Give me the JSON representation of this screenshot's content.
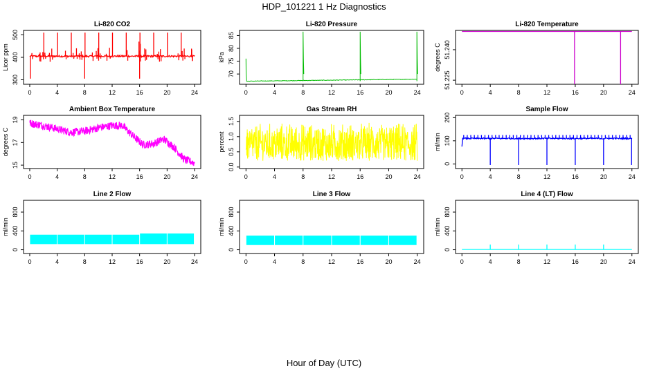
{
  "figure": {
    "title": "HDP_101221  1 Hz Diagnostics",
    "xlabel": "Hour of Day (UTC)"
  },
  "chart_data": [
    {
      "type": "line",
      "title": "Li-820 CO2",
      "ylabel": "Licor ppm",
      "color": "#ff0000",
      "xlim": [
        0,
        24
      ],
      "xticks": [
        "0",
        "4",
        "8",
        "12",
        "16",
        "20",
        "24"
      ],
      "ylim": [
        280,
        520
      ],
      "yticks": [
        "300",
        "400",
        "500"
      ],
      "ytick_values": [
        300,
        400,
        500
      ],
      "series": [
        {
          "name": "CO2",
          "baseline": 405,
          "noise": 4,
          "spikes_at": [
            0,
            2,
            4,
            6,
            8,
            10,
            12,
            14,
            16,
            18,
            20,
            22,
            24
          ],
          "spike_peak": 510,
          "dips_at": [
            0.1,
            8,
            16
          ],
          "dip_low": 305
        }
      ]
    },
    {
      "type": "line",
      "title": "Li-820 Pressure",
      "ylabel": "kPa",
      "color": "#00bb00",
      "xlim": [
        0,
        24
      ],
      "xticks": [
        "0",
        "4",
        "8",
        "12",
        "16",
        "20",
        "24"
      ],
      "ylim": [
        66,
        87
      ],
      "yticks": [
        "70",
        "75",
        "80",
        "85"
      ],
      "ytick_values": [
        70,
        75,
        80,
        85
      ],
      "series": [
        {
          "name": "Pressure",
          "start": 76,
          "baseline_start": 67.2,
          "baseline_end": 68,
          "spikes_at": [
            8,
            16,
            24
          ],
          "spike_peak": 86.5
        }
      ]
    },
    {
      "type": "line",
      "title": "Li-820 Temperature",
      "ylabel": "degrees C",
      "color": "#cc00cc",
      "xlim": [
        0,
        24
      ],
      "xticks": [
        "0",
        "4",
        "8",
        "12",
        "16",
        "20",
        "24"
      ],
      "ylim": [
        51.223,
        51.2495
      ],
      "yticks": [
        "51.225",
        "51.240"
      ],
      "ytick_values": [
        51.225,
        51.24
      ],
      "series": [
        {
          "name": "Temperature",
          "baseline": 51.249,
          "dips_at": [
            15.9,
            22.4
          ],
          "dip_low": 51.223
        }
      ]
    },
    {
      "type": "line",
      "title": "Ambient Box Temperature",
      "ylabel": "degrees C",
      "color": "#ff00ff",
      "xlim": [
        0,
        24
      ],
      "xticks": [
        "0",
        "4",
        "8",
        "12",
        "16",
        "20",
        "24"
      ],
      "ylim": [
        14.7,
        19.4
      ],
      "yticks": [
        "15",
        "17",
        "19"
      ],
      "ytick_values": [
        15,
        17,
        19
      ],
      "series": [
        {
          "name": "Ambient",
          "x": [
            0,
            2,
            4,
            6,
            8,
            10,
            12,
            13.5,
            15,
            16.5,
            18,
            19.5,
            21,
            22.5,
            24
          ],
          "y": [
            18.7,
            18.5,
            18.2,
            17.9,
            18.0,
            18.3,
            18.5,
            18.5,
            17.6,
            16.8,
            16.9,
            17.3,
            16.6,
            15.5,
            15.2
          ],
          "band": 0.35
        }
      ]
    },
    {
      "type": "line",
      "title": "Gas Stream RH",
      "ylabel": "percent",
      "color": "#ffff00",
      "xlim": [
        0,
        24
      ],
      "xticks": [
        "0",
        "4",
        "8",
        "12",
        "16",
        "20",
        "24"
      ],
      "ylim": [
        -0.05,
        1.7
      ],
      "yticks": [
        "0.0",
        "0.5",
        "1.0",
        "1.5"
      ],
      "ytick_values": [
        0.0,
        0.5,
        1.0,
        1.5
      ],
      "series": [
        {
          "name": "RH",
          "low": 0.2,
          "high": 1.5,
          "center": 0.8
        }
      ]
    },
    {
      "type": "line",
      "title": "Sample Flow",
      "ylabel": "ml/min",
      "color": "#0000ff",
      "xlim": [
        0,
        24
      ],
      "xticks": [
        "0",
        "4",
        "8",
        "12",
        "16",
        "20",
        "24"
      ],
      "ylim": [
        -20,
        210
      ],
      "yticks": [
        "0",
        "100",
        "200"
      ],
      "ytick_values": [
        0,
        100,
        200
      ],
      "series": [
        {
          "name": "Sample Flow",
          "baseline": 110,
          "tick_high": 125,
          "dips_at": [
            4,
            8,
            12,
            16,
            20,
            24
          ],
          "dip_low": -5
        }
      ]
    },
    {
      "type": "line",
      "title": "Line 2 Flow",
      "ylabel": "ml/min",
      "color": "#00ffff",
      "xlim": [
        0,
        24
      ],
      "xticks": [
        "0",
        "4",
        "8",
        "12",
        "16",
        "20",
        "24"
      ],
      "ylim": [
        -80,
        1050
      ],
      "yticks": [
        "0",
        "400",
        "800"
      ],
      "ytick_values": [
        0,
        400,
        800
      ],
      "series": [
        {
          "name": "Line 2",
          "low": 120,
          "high": 320,
          "gaps_at": [
            4,
            8,
            12,
            16,
            20
          ]
        }
      ]
    },
    {
      "type": "line",
      "title": "Line 3 Flow",
      "ylabel": "ml/min",
      "color": "#00ffff",
      "xlim": [
        0,
        24
      ],
      "xticks": [
        "0",
        "4",
        "8",
        "12",
        "16",
        "20",
        "24"
      ],
      "ylim": [
        -80,
        1050
      ],
      "yticks": [
        "0",
        "400",
        "800"
      ],
      "ytick_values": [
        0,
        400,
        800
      ],
      "series": [
        {
          "name": "Line 3",
          "low": 100,
          "high": 300,
          "gaps_at": [
            4,
            8,
            12,
            16,
            20
          ]
        }
      ]
    },
    {
      "type": "line",
      "title": "Line 4 (LT) Flow",
      "ylabel": "ml/min",
      "color": "#00ffff",
      "xlim": [
        0,
        24
      ],
      "xticks": [
        "0",
        "4",
        "8",
        "12",
        "16",
        "20",
        "24"
      ],
      "ylim": [
        -80,
        1050
      ],
      "yticks": [
        "0",
        "400",
        "800"
      ],
      "ytick_values": [
        0,
        400,
        800
      ],
      "series": [
        {
          "name": "Line 4",
          "baseline": 5,
          "spikes_at": [
            4,
            8,
            12,
            16,
            20
          ],
          "spike_peak": 110
        }
      ]
    }
  ]
}
